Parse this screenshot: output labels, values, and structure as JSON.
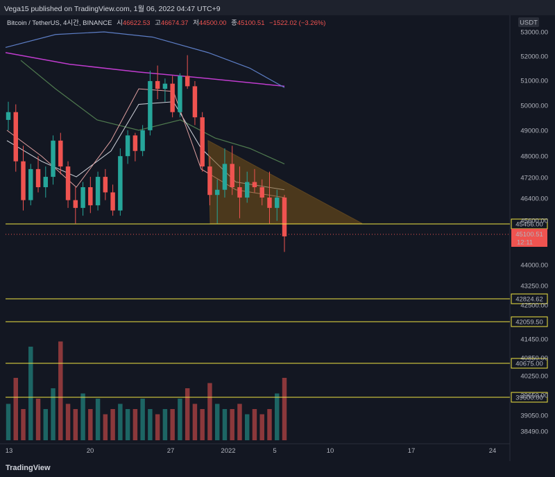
{
  "publisher_line": "Vega15 published on TradingView.com, 1월 06, 2022 04:47 UTC+9",
  "footer_logo": "TradingView",
  "symbol": {
    "title": "Bitcoin / TetherUS, 4시간, BINANCE",
    "open_label": "시",
    "open": "46622.53",
    "high_label": "고",
    "high": "46674.37",
    "low_label": "저",
    "low": "44500.00",
    "close_label": "종",
    "close": "45100.51",
    "change": "−1522.02 (−3.26%)"
  },
  "colors": {
    "background": "#131722",
    "up": "#26a69a",
    "down": "#ef5350",
    "level_line": "#f0e442",
    "triangle_fill": "#7a5418",
    "ma_blue": "#5d7ec6",
    "ma_magenta": "#c03ccf",
    "ma_green": "#4f7a4f"
  },
  "chart_data": {
    "type": "candlestick",
    "currency_label": "USDT",
    "y_ticks": [
      "53000.00",
      "52000.00",
      "51000.00",
      "50000.00",
      "49000.00",
      "48000.00",
      "47200.00",
      "46400.00",
      "45600.00",
      "44000.00",
      "43250.00",
      "42500.00",
      "41450.00",
      "40850.00",
      "40250.00",
      "39650.00",
      "39050.00",
      "38490.00"
    ],
    "x_ticks": [
      "13",
      "20",
      "27",
      "2022",
      "5",
      "10",
      "17",
      "24"
    ],
    "current_price": {
      "value": "45100.51",
      "countdown": "12:11"
    },
    "horizontal_levels": [
      "45456.00",
      "42824.62",
      "42059.50",
      "40675.00",
      "39600.00"
    ],
    "descending_triangle": {
      "upper_start": 48800,
      "lower": 45600,
      "apex": 45600
    },
    "candles_approx": [
      [
        49600,
        50300,
        49200,
        49900
      ],
      [
        49900,
        50200,
        47600,
        48000
      ],
      [
        48000,
        48600,
        46100,
        46500
      ],
      [
        46500,
        47900,
        46300,
        47700
      ],
      [
        47700,
        48200,
        46800,
        47000
      ],
      [
        47000,
        47800,
        46600,
        47400
      ],
      [
        47400,
        49000,
        47100,
        48800
      ],
      [
        48800,
        49100,
        47500,
        47800
      ],
      [
        47800,
        48000,
        46200,
        46500
      ],
      [
        46500,
        47000,
        45600,
        46200
      ],
      [
        46200,
        47200,
        45900,
        47000
      ],
      [
        47000,
        47400,
        46000,
        46300
      ],
      [
        46300,
        47600,
        46100,
        47400
      ],
      [
        47400,
        47700,
        46500,
        46800
      ],
      [
        46800,
        47100,
        45900,
        46100
      ],
      [
        46100,
        48500,
        45900,
        48200
      ],
      [
        48200,
        49200,
        47900,
        49000
      ],
      [
        49000,
        49100,
        48000,
        48400
      ],
      [
        48400,
        49400,
        48200,
        49200
      ],
      [
        49200,
        51500,
        49000,
        51100
      ],
      [
        51100,
        51700,
        50400,
        50800
      ],
      [
        50800,
        51200,
        50300,
        51000
      ],
      [
        51000,
        51300,
        49700,
        49900
      ],
      [
        49900,
        51400,
        49700,
        51300
      ],
      [
        51300,
        52100,
        50800,
        50900
      ],
      [
        50900,
        51100,
        49400,
        49700
      ],
      [
        49700,
        49900,
        47600,
        47800
      ],
      [
        47800,
        48200,
        46300,
        46700
      ],
      [
        46700,
        47300,
        45600,
        46900
      ],
      [
        46900,
        48500,
        46600,
        47900
      ],
      [
        47900,
        48600,
        46700,
        47000
      ],
      [
        47000,
        47800,
        45800,
        46600
      ],
      [
        46600,
        47600,
        46400,
        47200
      ],
      [
        47200,
        47700,
        46800,
        47000
      ],
      [
        47000,
        47300,
        46300,
        46600
      ],
      [
        46600,
        47600,
        45600,
        46200
      ],
      [
        46200,
        46900,
        45700,
        46600
      ],
      [
        46600,
        46700,
        44500,
        45100
      ]
    ],
    "volume_approx": [
      0.35,
      0.6,
      0.3,
      0.9,
      0.4,
      0.3,
      0.5,
      0.95,
      0.35,
      0.3,
      0.45,
      0.3,
      0.4,
      0.25,
      0.3,
      0.35,
      0.3,
      0.3,
      0.4,
      0.3,
      0.25,
      0.3,
      0.3,
      0.4,
      0.5,
      0.35,
      0.3,
      0.55,
      0.35,
      0.3,
      0.3,
      0.35,
      0.25,
      0.3,
      0.25,
      0.3,
      0.45,
      0.6
    ]
  }
}
